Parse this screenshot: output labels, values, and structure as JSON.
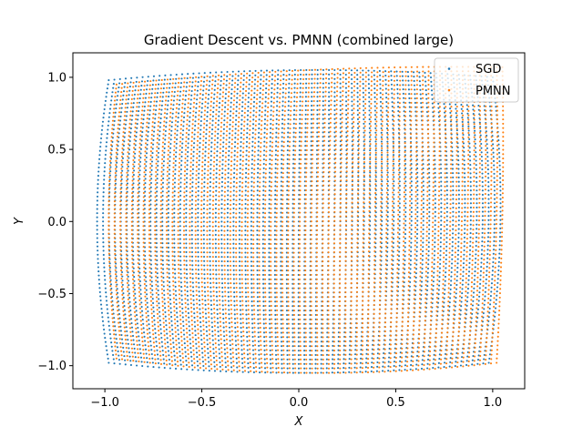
{
  "chart_data": {
    "type": "scatter",
    "title": "Gradient Descent vs. PMNN (combined large)",
    "xlabel": "X",
    "ylabel": "Y",
    "xlim": [
      -1.165,
      1.165
    ],
    "ylim": [
      -1.16,
      1.17
    ],
    "xticks": [
      -1.0,
      -0.5,
      0.0,
      0.5,
      1.0
    ],
    "xtick_labels": [
      "−1.0",
      "−0.5",
      "0.0",
      "0.5",
      "1.0"
    ],
    "yticks": [
      -1.0,
      -0.5,
      0.0,
      0.5,
      1.0
    ],
    "ytick_labels": [
      "−1.0",
      "−0.5",
      "0.0",
      "0.5",
      "1.0"
    ],
    "grid": false,
    "legend": "top-right",
    "series": [
      {
        "name": "SGD",
        "color": "#1f77b4",
        "description": "dense lattice of points filling a barrel-shaped region",
        "corners": [
          [
            -0.98,
            0.98
          ],
          [
            1.0,
            1.0
          ],
          [
            0.98,
            -0.98
          ],
          [
            -0.98,
            -0.98
          ]
        ],
        "left_edge_mid_x": -1.04,
        "right_edge_mid_x": 1.04,
        "top_edge_mid_y": 1.05,
        "bottom_edge_mid_y": -1.05
      },
      {
        "name": "PMNN",
        "color": "#ff7f0e",
        "description": "dense lattice of points filling a pincushion-shaped region",
        "corners": [
          [
            -0.94,
            0.95
          ],
          [
            1.05,
            1.07
          ],
          [
            1.02,
            -0.98
          ],
          [
            -0.94,
            -0.95
          ]
        ],
        "left_edge_mid_x": -0.98,
        "right_edge_mid_x": 1.05,
        "top_edge_mid_y": 1.05,
        "bottom_edge_mid_y": -1.05
      }
    ]
  }
}
